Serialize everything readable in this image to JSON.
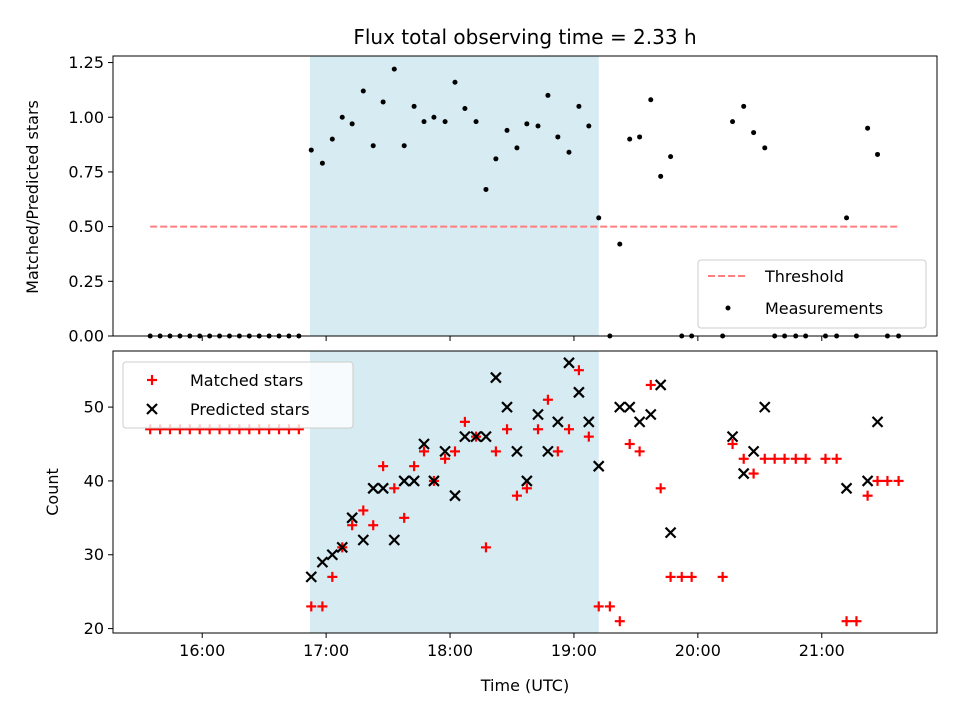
{
  "colors": {
    "span": "#add8e6",
    "threshold": "#ff7f7f",
    "measurement": "#000000",
    "matched": "#ff0000",
    "predicted": "#000000"
  },
  "chart_data": [
    {
      "type": "scatter",
      "title": "Flux total observing time = 2.33 h",
      "xlabel": "",
      "ylabel": "Matched/Predicted stars",
      "x_unit": "hours UTC",
      "xlim": [
        15.28,
        21.93
      ],
      "ylim": [
        0,
        1.28
      ],
      "yticks": [
        0.0,
        0.25,
        0.5,
        0.75,
        1.0,
        1.25
      ],
      "ytick_labels": [
        "0.00",
        "0.25",
        "0.50",
        "0.75",
        "1.00",
        "1.25"
      ],
      "shaded_span": [
        16.87,
        19.2
      ],
      "legend_position": "lower right",
      "threshold": {
        "name": "Threshold",
        "y": 0.5,
        "x": [
          15.58,
          21.62
        ]
      },
      "series": [
        {
          "name": "Measurements",
          "marker": "dot",
          "points": [
            [
              15.58,
              0
            ],
            [
              15.66,
              0
            ],
            [
              15.74,
              0
            ],
            [
              15.82,
              0
            ],
            [
              15.9,
              0
            ],
            [
              15.98,
              0
            ],
            [
              16.06,
              0
            ],
            [
              16.14,
              0
            ],
            [
              16.22,
              0
            ],
            [
              16.3,
              0
            ],
            [
              16.38,
              0
            ],
            [
              16.46,
              0
            ],
            [
              16.54,
              0
            ],
            [
              16.62,
              0
            ],
            [
              16.7,
              0
            ],
            [
              16.78,
              0
            ],
            [
              16.88,
              0.85
            ],
            [
              16.97,
              0.79
            ],
            [
              17.05,
              0.9
            ],
            [
              17.13,
              1.0
            ],
            [
              17.21,
              0.97
            ],
            [
              17.3,
              1.12
            ],
            [
              17.38,
              0.87
            ],
            [
              17.46,
              1.07
            ],
            [
              17.55,
              1.22
            ],
            [
              17.63,
              0.87
            ],
            [
              17.71,
              1.05
            ],
            [
              17.79,
              0.98
            ],
            [
              17.87,
              1.0
            ],
            [
              17.96,
              0.98
            ],
            [
              18.04,
              1.16
            ],
            [
              18.12,
              1.04
            ],
            [
              18.21,
              0.98
            ],
            [
              18.29,
              0.67
            ],
            [
              18.37,
              0.81
            ],
            [
              18.46,
              0.94
            ],
            [
              18.54,
              0.86
            ],
            [
              18.62,
              0.97
            ],
            [
              18.71,
              0.96
            ],
            [
              18.79,
              1.1
            ],
            [
              18.87,
              0.91
            ],
            [
              18.96,
              0.84
            ],
            [
              19.04,
              1.05
            ],
            [
              19.12,
              0.96
            ],
            [
              19.2,
              0.54
            ],
            [
              19.29,
              0
            ],
            [
              19.37,
              0.42
            ],
            [
              19.45,
              0.9
            ],
            [
              19.53,
              0.91
            ],
            [
              19.62,
              1.08
            ],
            [
              19.7,
              0.73
            ],
            [
              19.78,
              0.82
            ],
            [
              19.87,
              0
            ],
            [
              19.95,
              0
            ],
            [
              20.2,
              0
            ],
            [
              20.28,
              0.98
            ],
            [
              20.37,
              1.05
            ],
            [
              20.45,
              0.93
            ],
            [
              20.54,
              0.86
            ],
            [
              20.62,
              0
            ],
            [
              20.7,
              0
            ],
            [
              20.79,
              0
            ],
            [
              20.87,
              0
            ],
            [
              21.03,
              0
            ],
            [
              21.12,
              0
            ],
            [
              21.2,
              0.54
            ],
            [
              21.28,
              0
            ],
            [
              21.37,
              0.95
            ],
            [
              21.45,
              0.83
            ],
            [
              21.53,
              0
            ],
            [
              21.62,
              0
            ]
          ]
        }
      ]
    },
    {
      "type": "scatter",
      "title": "",
      "xlabel": "Time (UTC)",
      "ylabel": "Count",
      "x_unit": "hours UTC",
      "xlim": [
        15.28,
        21.93
      ],
      "ylim": [
        19.4,
        57.6
      ],
      "yticks": [
        20,
        30,
        40,
        50
      ],
      "ytick_labels": [
        "20",
        "30",
        "40",
        "50"
      ],
      "xticks": [
        16,
        17,
        18,
        19,
        20,
        21
      ],
      "xtick_labels": [
        "16:00",
        "17:00",
        "18:00",
        "19:00",
        "20:00",
        "21:00"
      ],
      "shaded_span": [
        16.87,
        19.2
      ],
      "legend_position": "upper left",
      "series": [
        {
          "name": "Matched stars",
          "marker": "plus",
          "points": [
            [
              15.58,
              47
            ],
            [
              15.66,
              47
            ],
            [
              15.74,
              47
            ],
            [
              15.82,
              47
            ],
            [
              15.9,
              47
            ],
            [
              15.98,
              47
            ],
            [
              16.06,
              47
            ],
            [
              16.14,
              47
            ],
            [
              16.22,
              47
            ],
            [
              16.3,
              47
            ],
            [
              16.38,
              47
            ],
            [
              16.46,
              47
            ],
            [
              16.54,
              47
            ],
            [
              16.62,
              47
            ],
            [
              16.7,
              47
            ],
            [
              16.78,
              47
            ],
            [
              16.88,
              23
            ],
            [
              16.97,
              23
            ],
            [
              17.05,
              27
            ],
            [
              17.13,
              31
            ],
            [
              17.21,
              34
            ],
            [
              17.3,
              36
            ],
            [
              17.38,
              34
            ],
            [
              17.46,
              42
            ],
            [
              17.55,
              39
            ],
            [
              17.63,
              35
            ],
            [
              17.71,
              42
            ],
            [
              17.79,
              44
            ],
            [
              17.87,
              40
            ],
            [
              17.96,
              43
            ],
            [
              18.04,
              44
            ],
            [
              18.12,
              48
            ],
            [
              18.21,
              46
            ],
            [
              18.29,
              31
            ],
            [
              18.37,
              44
            ],
            [
              18.46,
              47
            ],
            [
              18.54,
              38
            ],
            [
              18.62,
              39
            ],
            [
              18.71,
              47
            ],
            [
              18.79,
              51
            ],
            [
              18.87,
              44
            ],
            [
              18.96,
              47
            ],
            [
              19.04,
              55
            ],
            [
              19.12,
              46
            ],
            [
              19.2,
              23
            ],
            [
              19.29,
              23
            ],
            [
              19.37,
              21
            ],
            [
              19.45,
              45
            ],
            [
              19.53,
              44
            ],
            [
              19.62,
              53
            ],
            [
              19.7,
              39
            ],
            [
              19.78,
              27
            ],
            [
              19.87,
              27
            ],
            [
              19.95,
              27
            ],
            [
              20.2,
              27
            ],
            [
              20.28,
              45
            ],
            [
              20.37,
              43
            ],
            [
              20.45,
              41
            ],
            [
              20.54,
              43
            ],
            [
              20.62,
              43
            ],
            [
              20.7,
              43
            ],
            [
              20.79,
              43
            ],
            [
              20.87,
              43
            ],
            [
              21.03,
              43
            ],
            [
              21.12,
              43
            ],
            [
              21.2,
              21
            ],
            [
              21.28,
              21
            ],
            [
              21.37,
              38
            ],
            [
              21.45,
              40
            ],
            [
              21.53,
              40
            ],
            [
              21.62,
              40
            ]
          ]
        },
        {
          "name": "Predicted stars",
          "marker": "x",
          "points": [
            [
              16.88,
              27
            ],
            [
              16.97,
              29
            ],
            [
              17.05,
              30
            ],
            [
              17.13,
              31
            ],
            [
              17.21,
              35
            ],
            [
              17.3,
              32
            ],
            [
              17.38,
              39
            ],
            [
              17.46,
              39
            ],
            [
              17.55,
              32
            ],
            [
              17.63,
              40
            ],
            [
              17.71,
              40
            ],
            [
              17.79,
              45
            ],
            [
              17.87,
              40
            ],
            [
              17.96,
              44
            ],
            [
              18.04,
              38
            ],
            [
              18.12,
              46
            ],
            [
              18.21,
              46
            ],
            [
              18.29,
              46
            ],
            [
              18.37,
              54
            ],
            [
              18.46,
              50
            ],
            [
              18.54,
              44
            ],
            [
              18.62,
              40
            ],
            [
              18.71,
              49
            ],
            [
              18.79,
              44
            ],
            [
              18.87,
              48
            ],
            [
              18.96,
              56
            ],
            [
              19.04,
              52
            ],
            [
              19.12,
              48
            ],
            [
              19.2,
              42
            ],
            [
              19.37,
              50
            ],
            [
              19.45,
              50
            ],
            [
              19.53,
              48
            ],
            [
              19.62,
              49
            ],
            [
              19.7,
              53
            ],
            [
              19.78,
              33
            ],
            [
              20.28,
              46
            ],
            [
              20.37,
              41
            ],
            [
              20.45,
              44
            ],
            [
              20.54,
              50
            ],
            [
              21.2,
              39
            ],
            [
              21.37,
              40
            ],
            [
              21.45,
              48
            ]
          ]
        }
      ]
    }
  ]
}
